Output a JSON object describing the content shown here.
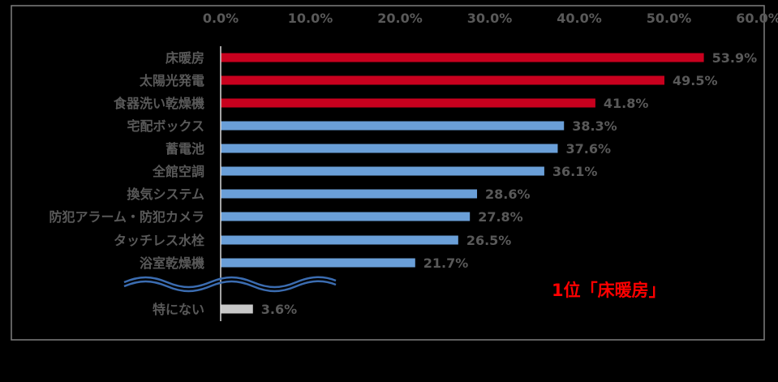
{
  "chart_data": {
    "type": "bar",
    "orientation": "horizontal",
    "x_ticks": [
      "0.0%",
      "10.0%",
      "20.0%",
      "30.0%",
      "40.0%",
      "50.0%",
      "60.0%"
    ],
    "xlim": [
      0,
      60
    ],
    "grid": false,
    "categories": [
      "床暖房",
      "太陽光発電",
      "食器洗い乾燥機",
      "宅配ボックス",
      "蓄電池",
      "全館空調",
      "換気システム",
      "防犯アラーム・防犯カメラ",
      "タッチレス水栓",
      "浴室乾燥機",
      "特にない"
    ],
    "values": [
      53.9,
      49.5,
      41.8,
      38.3,
      37.6,
      36.1,
      28.6,
      27.8,
      26.5,
      21.7,
      3.6
    ],
    "value_labels": [
      "53.9%",
      "49.5%",
      "41.8%",
      "38.3%",
      "37.6%",
      "36.1%",
      "28.6%",
      "27.8%",
      "26.5%",
      "21.7%",
      "3.6%"
    ],
    "bar_colors": [
      "#c8001e",
      "#c8001e",
      "#c8001e",
      "#6a9fd8",
      "#6a9fd8",
      "#6a9fd8",
      "#6a9fd8",
      "#6a9fd8",
      "#6a9fd8",
      "#6a9fd8",
      "#c8c8c8"
    ],
    "axis_break": true,
    "annotation": "1位「床暖房」",
    "annotation_color": "#ff0000",
    "frame_color": "#7f7f7f",
    "label_color": "#595959"
  }
}
